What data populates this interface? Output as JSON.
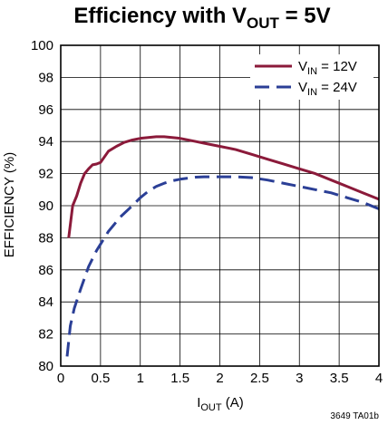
{
  "chart_data": {
    "type": "line",
    "title": {
      "main": "Efficiency with V",
      "sub": "OUT",
      "rest": " = 5V"
    },
    "xlabel": {
      "main": "I",
      "sub": "OUT",
      "rest": " (A)"
    },
    "ylabel": "EFFICIENCY (%)",
    "xlim": [
      0,
      4
    ],
    "ylim": [
      80,
      100
    ],
    "x_ticks": [
      0,
      0.5,
      1,
      1.5,
      2,
      2.5,
      3,
      3.5,
      4
    ],
    "x_tick_labels": [
      "0",
      "0.5",
      "1",
      "1.5",
      "2",
      "2.5",
      "3",
      "3.5",
      "4"
    ],
    "y_ticks": [
      80,
      82,
      84,
      86,
      88,
      90,
      92,
      94,
      96,
      98,
      100
    ],
    "y_tick_labels": [
      "80",
      "82",
      "84",
      "86",
      "88",
      "90",
      "92",
      "94",
      "96",
      "98",
      "100"
    ],
    "grid": true,
    "legend_position": "top-right",
    "series": [
      {
        "name": "V_IN = 12V",
        "legend": {
          "main": "V",
          "sub": "IN",
          "rest": " = 12V"
        },
        "color": "#8b1a3a",
        "dash": "solid",
        "x": [
          0.1,
          0.15,
          0.2,
          0.25,
          0.3,
          0.35,
          0.4,
          0.45,
          0.5,
          0.6,
          0.7,
          0.8,
          0.9,
          1.0,
          1.1,
          1.2,
          1.3,
          1.4,
          1.5,
          1.6,
          1.7,
          1.8,
          2.0,
          2.2,
          2.4,
          2.6,
          2.8,
          3.0,
          3.2,
          3.4,
          3.6,
          3.8,
          3.9,
          4.0
        ],
        "y": [
          88.0,
          90.0,
          90.6,
          91.4,
          92.0,
          92.3,
          92.55,
          92.6,
          92.7,
          93.4,
          93.7,
          93.95,
          94.1,
          94.2,
          94.25,
          94.3,
          94.3,
          94.25,
          94.2,
          94.1,
          94.0,
          93.9,
          93.7,
          93.5,
          93.2,
          92.9,
          92.6,
          92.3,
          92.0,
          91.6,
          91.2,
          90.8,
          90.6,
          90.4
        ]
      },
      {
        "name": "V_IN = 24V",
        "legend": {
          "main": "V",
          "sub": "IN",
          "rest": " = 24V"
        },
        "color": "#2b3f96",
        "dash": "dashed",
        "x": [
          0.08,
          0.12,
          0.17,
          0.25,
          0.35,
          0.45,
          0.6,
          0.75,
          0.9,
          1.0,
          1.1,
          1.2,
          1.3,
          1.4,
          1.5,
          1.6,
          1.7,
          1.8,
          2.0,
          2.2,
          2.4,
          2.6,
          2.8,
          3.0,
          3.2,
          3.4,
          3.6,
          3.8,
          4.0
        ],
        "y": [
          80.6,
          82.5,
          83.6,
          84.8,
          86.2,
          87.2,
          88.4,
          89.3,
          90.0,
          90.5,
          90.9,
          91.2,
          91.4,
          91.55,
          91.65,
          91.72,
          91.78,
          91.8,
          91.8,
          91.8,
          91.75,
          91.6,
          91.4,
          91.2,
          91.0,
          90.8,
          90.5,
          90.2,
          89.8
        ]
      }
    ],
    "figure_id": "3649 TA01b"
  }
}
